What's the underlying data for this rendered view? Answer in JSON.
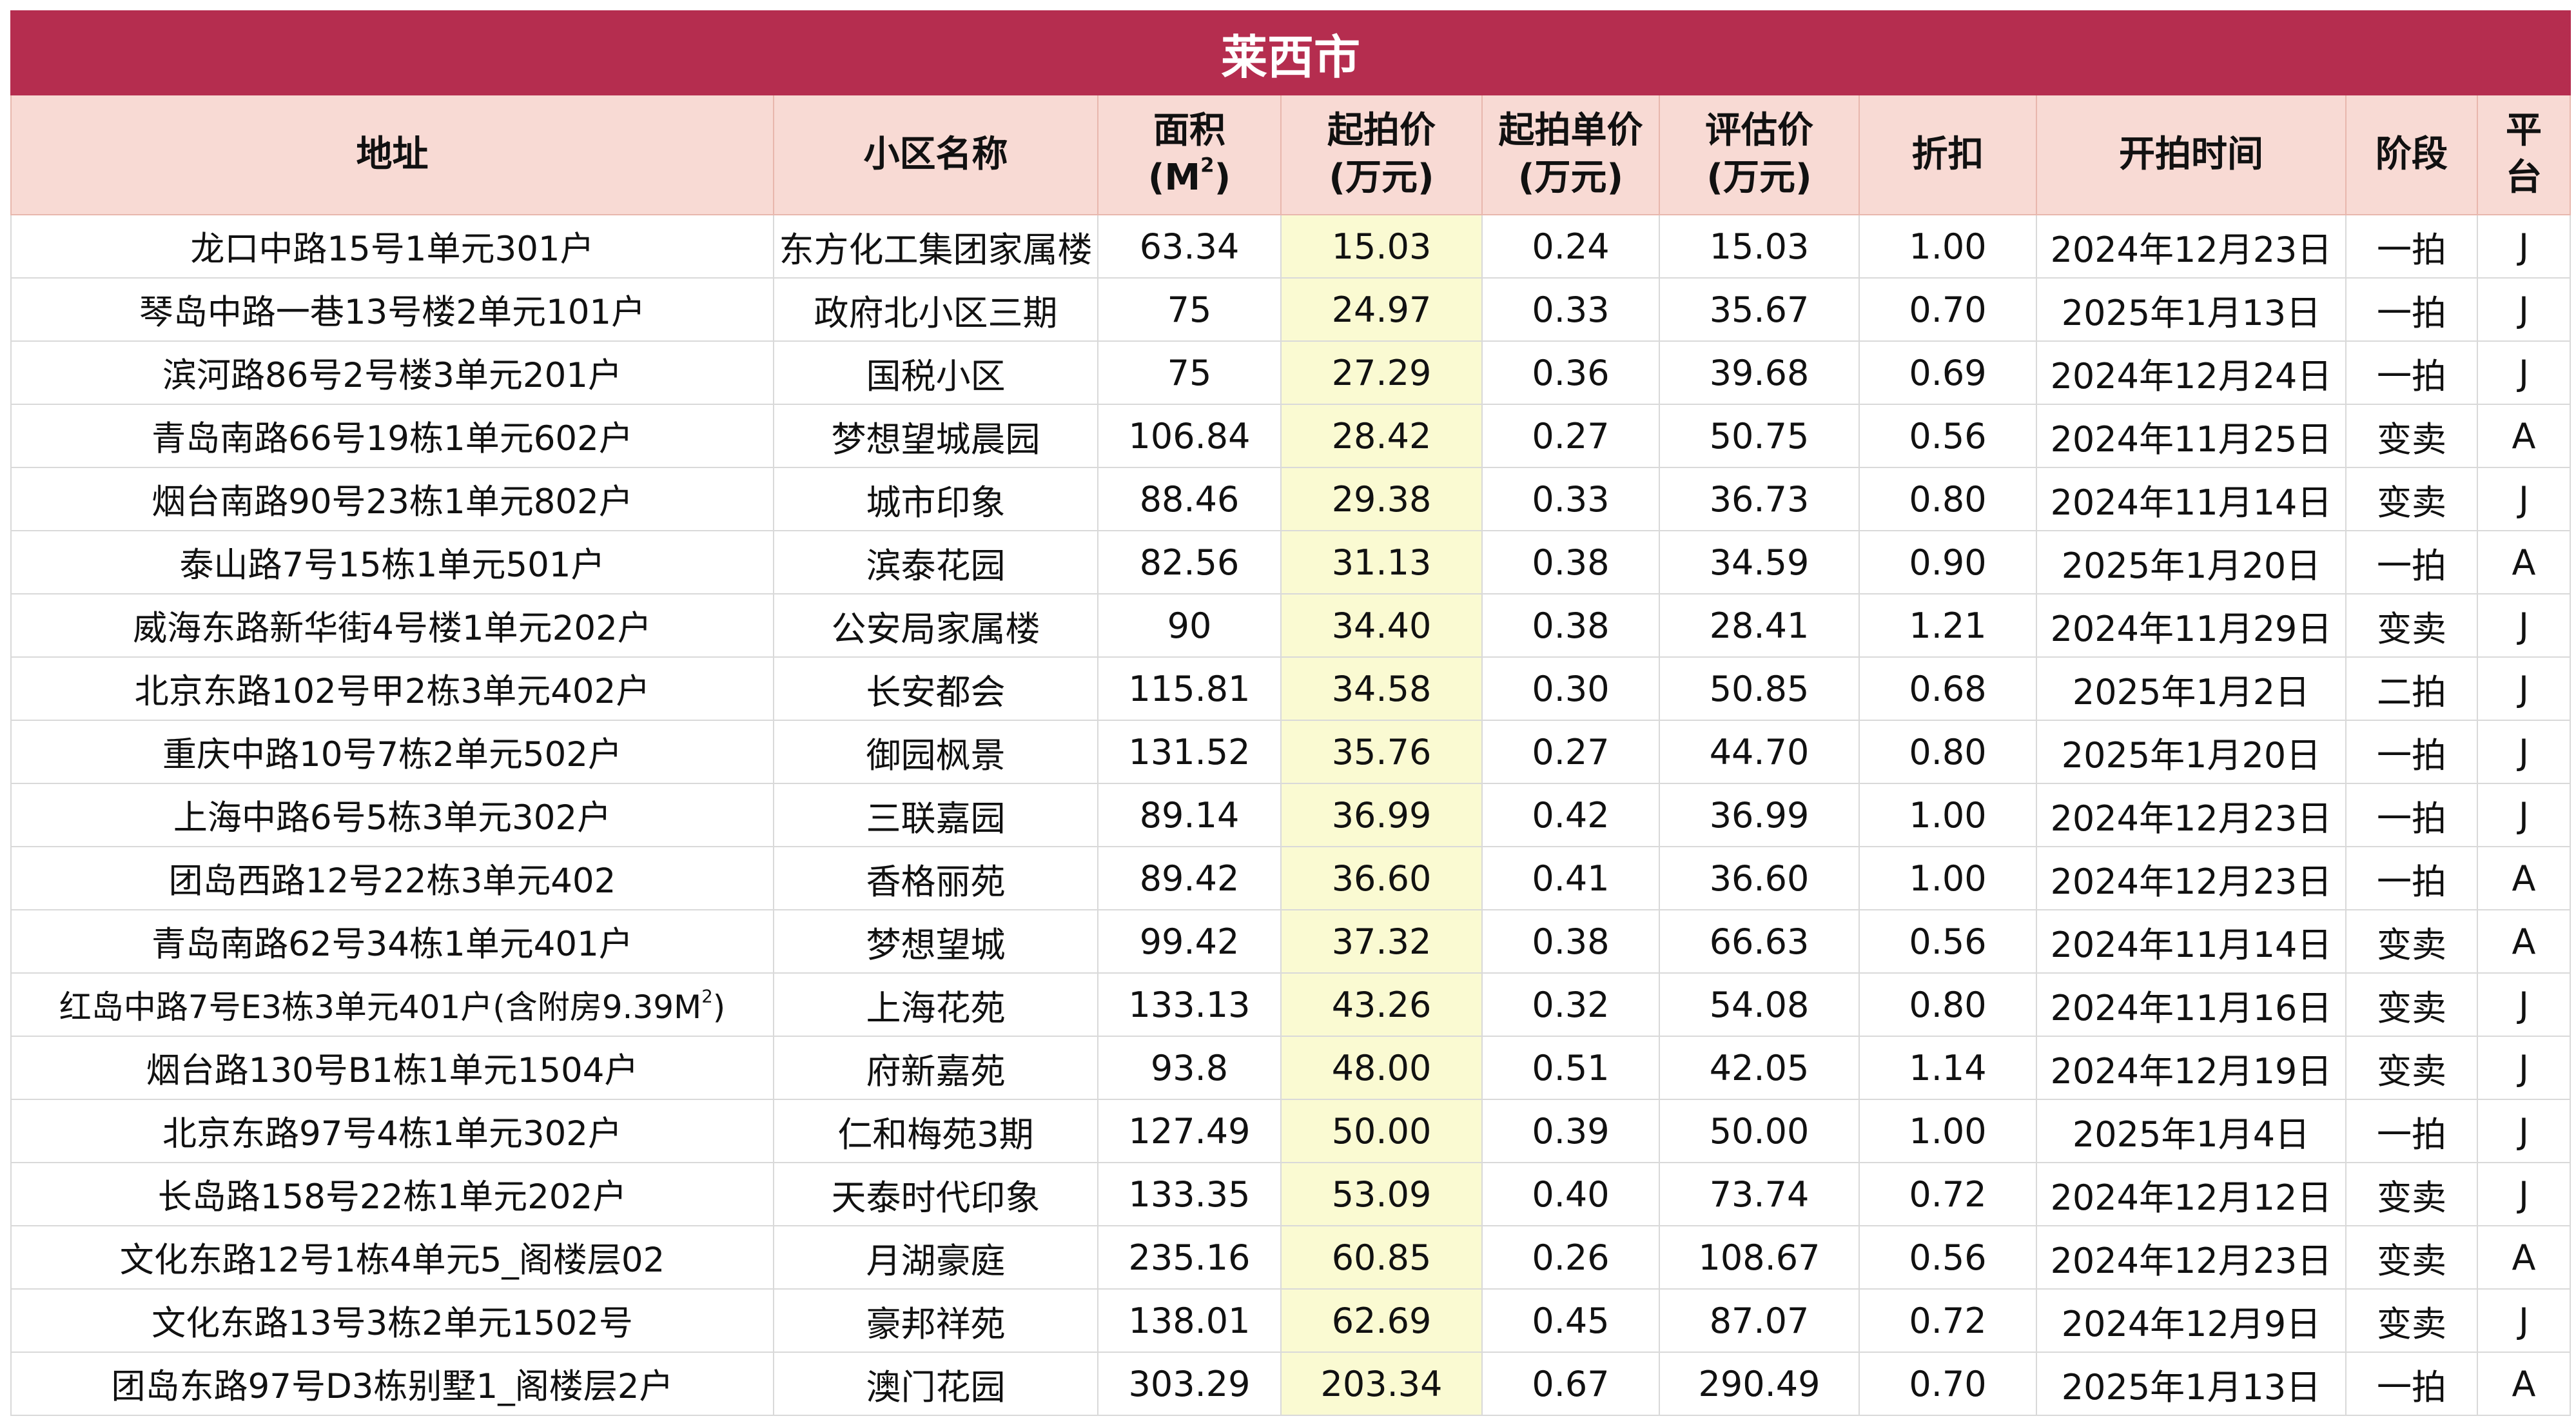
{
  "title": "莱西市",
  "headers": {
    "address": "地址",
    "community": "小区名称",
    "area_line1": "面积",
    "area_line2": "(M²)",
    "start_price_line1": "起拍价",
    "start_price_line2": "(万元)",
    "unit_price_line1": "起拍单价",
    "unit_price_line2": "(万元)",
    "eval_price_line1": "评估价",
    "eval_price_line2": "(万元)",
    "discount": "折扣",
    "start_time": "开拍时间",
    "stage": "阶段",
    "platform_line1": "平",
    "platform_line2": "台"
  },
  "rows": [
    {
      "address": "龙口中路15号1单元301户",
      "community": "东方化工集团家属楼",
      "area": "63.34",
      "start_price": "15.03",
      "unit_price": "0.24",
      "eval_price": "15.03",
      "discount": "1.00",
      "time": "2024年12月23日",
      "stage": "一拍",
      "platform": "J"
    },
    {
      "address": "琴岛中路一巷13号楼2单元101户",
      "community": "政府北小区三期",
      "area": "75",
      "start_price": "24.97",
      "unit_price": "0.33",
      "eval_price": "35.67",
      "discount": "0.70",
      "time": "2025年1月13日",
      "stage": "一拍",
      "platform": "J"
    },
    {
      "address": "滨河路86号2号楼3单元201户",
      "community": "国税小区",
      "area": "75",
      "start_price": "27.29",
      "unit_price": "0.36",
      "eval_price": "39.68",
      "discount": "0.69",
      "time": "2024年12月24日",
      "stage": "一拍",
      "platform": "J"
    },
    {
      "address": "青岛南路66号19栋1单元602户",
      "community": "梦想望城晨园",
      "area": "106.84",
      "start_price": "28.42",
      "unit_price": "0.27",
      "eval_price": "50.75",
      "discount": "0.56",
      "time": "2024年11月25日",
      "stage": "变卖",
      "platform": "A"
    },
    {
      "address": "烟台南路90号23栋1单元802户",
      "community": "城市印象",
      "area": "88.46",
      "start_price": "29.38",
      "unit_price": "0.33",
      "eval_price": "36.73",
      "discount": "0.80",
      "time": "2024年11月14日",
      "stage": "变卖",
      "platform": "J"
    },
    {
      "address": "泰山路7号15栋1单元501户",
      "community": "滨泰花园",
      "area": "82.56",
      "start_price": "31.13",
      "unit_price": "0.38",
      "eval_price": "34.59",
      "discount": "0.90",
      "time": "2025年1月20日",
      "stage": "一拍",
      "platform": "A"
    },
    {
      "address": "威海东路新华街4号楼1单元202户",
      "community": "公安局家属楼",
      "area": "90",
      "start_price": "34.40",
      "unit_price": "0.38",
      "eval_price": "28.41",
      "discount": "1.21",
      "time": "2024年11月29日",
      "stage": "变卖",
      "platform": "J"
    },
    {
      "address": "北京东路102号甲2栋3单元402户",
      "community": "长安都会",
      "area": "115.81",
      "start_price": "34.58",
      "unit_price": "0.30",
      "eval_price": "50.85",
      "discount": "0.68",
      "time": "2025年1月2日",
      "stage": "二拍",
      "platform": "J"
    },
    {
      "address": "重庆中路10号7栋2单元502户",
      "community": "御园枫景",
      "area": "131.52",
      "start_price": "35.76",
      "unit_price": "0.27",
      "eval_price": "44.70",
      "discount": "0.80",
      "time": "2025年1月20日",
      "stage": "一拍",
      "platform": "J"
    },
    {
      "address": "上海中路6号5栋3单元302户",
      "community": "三联嘉园",
      "area": "89.14",
      "start_price": "36.99",
      "unit_price": "0.42",
      "eval_price": "36.99",
      "discount": "1.00",
      "time": "2024年12月23日",
      "stage": "一拍",
      "platform": "J"
    },
    {
      "address": "团岛西路12号22栋3单元402",
      "community": "香格丽苑",
      "area": "89.42",
      "start_price": "36.60",
      "unit_price": "0.41",
      "eval_price": "36.60",
      "discount": "1.00",
      "time": "2024年12月23日",
      "stage": "一拍",
      "platform": "A"
    },
    {
      "address": "青岛南路62号34栋1单元401户",
      "community": "梦想望城",
      "area": "99.42",
      "start_price": "37.32",
      "unit_price": "0.38",
      "eval_price": "66.63",
      "discount": "0.56",
      "time": "2024年11月14日",
      "stage": "变卖",
      "platform": "A"
    },
    {
      "address": "红岛中路7号E3栋3单元401户(含附房9.39M²)",
      "community": "上海花苑",
      "area": "133.13",
      "start_price": "43.26",
      "unit_price": "0.32",
      "eval_price": "54.08",
      "discount": "0.80",
      "time": "2024年11月16日",
      "stage": "变卖",
      "platform": "J"
    },
    {
      "address": "烟台路130号B1栋1单元1504户",
      "community": "府新嘉苑",
      "area": "93.8",
      "start_price": "48.00",
      "unit_price": "0.51",
      "eval_price": "42.05",
      "discount": "1.14",
      "time": "2024年12月19日",
      "stage": "变卖",
      "platform": "J"
    },
    {
      "address": "北京东路97号4栋1单元302户",
      "community": "仁和梅苑3期",
      "area": "127.49",
      "start_price": "50.00",
      "unit_price": "0.39",
      "eval_price": "50.00",
      "discount": "1.00",
      "time": "2025年1月4日",
      "stage": "一拍",
      "platform": "J"
    },
    {
      "address": "长岛路158号22栋1单元202户",
      "community": "天泰时代印象",
      "area": "133.35",
      "start_price": "53.09",
      "unit_price": "0.40",
      "eval_price": "73.74",
      "discount": "0.72",
      "time": "2024年12月12日",
      "stage": "变卖",
      "platform": "J"
    },
    {
      "address": "文化东路12号1栋4单元5_阁楼层02",
      "community": "月湖豪庭",
      "area": "235.16",
      "start_price": "60.85",
      "unit_price": "0.26",
      "eval_price": "108.67",
      "discount": "0.56",
      "time": "2024年12月23日",
      "stage": "变卖",
      "platform": "A"
    },
    {
      "address": "文化东路13号3栋2单元1502号",
      "community": "豪邦祥苑",
      "area": "138.01",
      "start_price": "62.69",
      "unit_price": "0.45",
      "eval_price": "87.07",
      "discount": "0.72",
      "time": "2024年12月9日",
      "stage": "变卖",
      "platform": "J"
    },
    {
      "address": "团岛东路97号D3栋别墅1_阁楼层2户",
      "community": "澳门花园",
      "area": "303.29",
      "start_price": "203.34",
      "unit_price": "0.67",
      "eval_price": "290.49",
      "discount": "0.70",
      "time": "2025年1月13日",
      "stage": "一拍",
      "platform": "A"
    }
  ]
}
